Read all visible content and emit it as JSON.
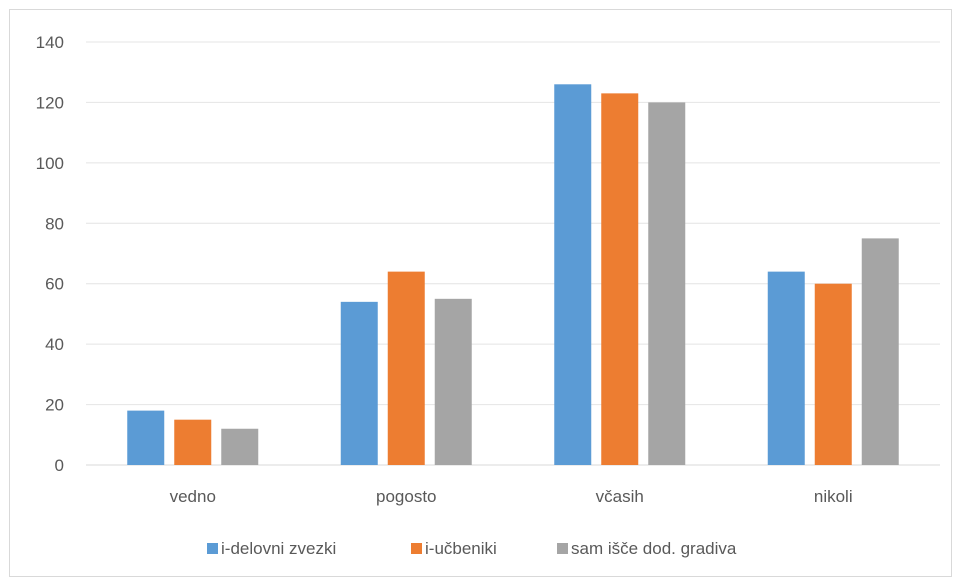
{
  "chart_data": {
    "type": "bar",
    "categories": [
      "vedno",
      "pogosto",
      "včasih",
      "nikoli"
    ],
    "series": [
      {
        "name": "i-delovni zvezki",
        "values": [
          18,
          54,
          126,
          64
        ],
        "color": "#5b9bd5"
      },
      {
        "name": "i-učbeniki",
        "values": [
          15,
          64,
          123,
          60
        ],
        "color": "#ed7d31"
      },
      {
        "name": "sam išče dod. gradiva",
        "values": [
          12,
          55,
          120,
          75
        ],
        "color": "#a5a5a5"
      }
    ],
    "ylim": [
      0,
      140
    ],
    "yticks": [
      0,
      20,
      40,
      60,
      80,
      100,
      120,
      140
    ],
    "grid": true,
    "legend": "bottom",
    "title": "",
    "xlabel": "",
    "ylabel": ""
  }
}
